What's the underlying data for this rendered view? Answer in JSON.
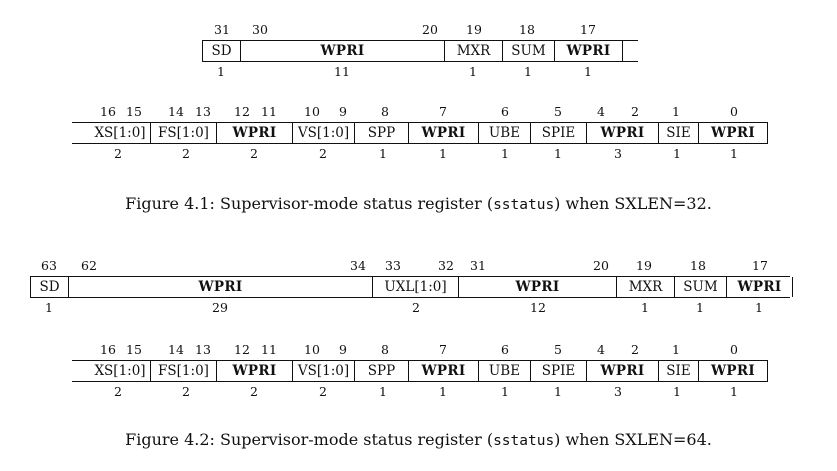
{
  "figures": [
    {
      "rows": [
        {
          "bits": [
            "31",
            "30",
            "20",
            "19",
            "18",
            "17"
          ],
          "fields": [
            "SD",
            "WPRI",
            "MXR",
            "SUM",
            "WPRI",
            ""
          ],
          "widths": [
            "1",
            "11",
            "1",
            "1",
            "1"
          ]
        },
        {
          "bits": [
            "16",
            "15",
            "14",
            "13",
            "12",
            "11",
            "10",
            "9",
            "8",
            "7",
            "6",
            "5",
            "4",
            "2",
            "1",
            "0"
          ],
          "fields": [
            "XS[1:0]",
            "FS[1:0]",
            "WPRI",
            "VS[1:0]",
            "SPP",
            "WPRI",
            "UBE",
            "SPIE",
            "WPRI",
            "SIE",
            "WPRI"
          ],
          "widths": [
            "2",
            "2",
            "2",
            "2",
            "1",
            "1",
            "1",
            "1",
            "3",
            "1",
            "1"
          ]
        }
      ],
      "caption": {
        "prefix": "Figure 4.1: Supervisor-mode status register (",
        "code": "sstatus",
        "suffix": ") when SXLEN=32."
      }
    },
    {
      "rows": [
        {
          "bits": [
            "63",
            "62",
            "34",
            "33",
            "32",
            "31",
            "20",
            "19",
            "18",
            "17"
          ],
          "fields": [
            "SD",
            "WPRI",
            "UXL[1:0]",
            "WPRI",
            "MXR",
            "SUM",
            "WPRI",
            ""
          ],
          "widths": [
            "1",
            "29",
            "2",
            "12",
            "1",
            "1",
            "1"
          ]
        },
        {
          "bits": [
            "16",
            "15",
            "14",
            "13",
            "12",
            "11",
            "10",
            "9",
            "8",
            "7",
            "6",
            "5",
            "4",
            "2",
            "1",
            "0"
          ],
          "fields": [
            "XS[1:0]",
            "FS[1:0]",
            "WPRI",
            "VS[1:0]",
            "SPP",
            "WPRI",
            "UBE",
            "SPIE",
            "WPRI",
            "SIE",
            "WPRI"
          ],
          "widths": [
            "2",
            "2",
            "2",
            "2",
            "1",
            "1",
            "1",
            "1",
            "3",
            "1",
            "1"
          ]
        }
      ],
      "caption": {
        "prefix": "Figure 4.2: Supervisor-mode status register (",
        "code": "sstatus",
        "suffix": ") when SXLEN=64."
      }
    }
  ]
}
